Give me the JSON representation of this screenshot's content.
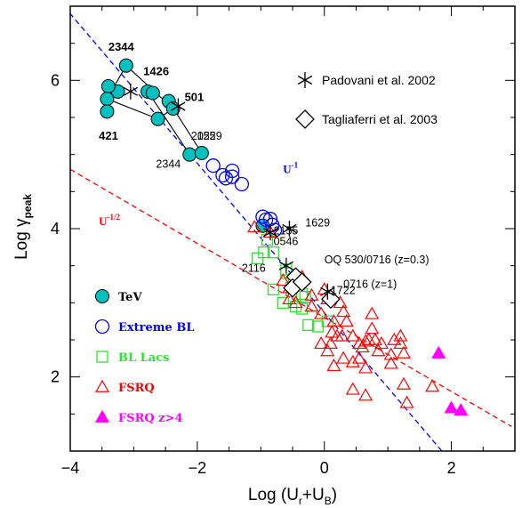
{
  "chart_data": {
    "type": "scatter",
    "xlabel_main": "Log (U",
    "xlabel_sub1": "r",
    "xlabel_mid": "+U",
    "xlabel_sub2": "B",
    "xlabel_end": ")",
    "ylabel_main": "Log γ",
    "ylabel_sub": "peak",
    "xlim": [
      -4,
      3
    ],
    "ylim": [
      1,
      7
    ],
    "xticks": [
      -4,
      -2,
      0,
      2
    ],
    "yticks": [
      2,
      4,
      6
    ],
    "lines": [
      {
        "label": "U",
        "exp": "-1",
        "color": "#0000ff",
        "x": [
          -4.1,
          1.85
        ],
        "y": [
          7.0,
          1.0
        ]
      },
      {
        "label": "U",
        "exp": "-1/2",
        "color": "#ff0000",
        "x": [
          -4.0,
          2.95
        ],
        "y": [
          4.8,
          1.33
        ]
      }
    ],
    "line_labels": [
      {
        "base": "U",
        "exp": "-1",
        "color": "#0000ff",
        "x": -0.65,
        "y": 4.75
      },
      {
        "base": "U",
        "exp": "-1/2",
        "color": "#ff0000",
        "x": -3.55,
        "y": 4.05
      }
    ],
    "series": [
      {
        "name": "TeV",
        "marker": "circle-filled",
        "color": "#00c0c0",
        "points": [
          [
            -3.12,
            6.2
          ],
          [
            -3.25,
            5.85
          ],
          [
            -3.4,
            5.92
          ],
          [
            -3.42,
            5.75
          ],
          [
            -3.42,
            5.58
          ],
          [
            -2.78,
            5.85
          ],
          [
            -2.7,
            5.83
          ],
          [
            -2.45,
            5.72
          ],
          [
            -2.38,
            5.62
          ],
          [
            -2.62,
            5.48
          ],
          [
            -2.12,
            5.0
          ],
          [
            -1.93,
            5.02
          ],
          [
            -0.97,
            4.04
          ]
        ]
      },
      {
        "name": "Extreme BL",
        "marker": "circle-open",
        "color": "#0000ff",
        "points": [
          [
            -1.75,
            4.85
          ],
          [
            -1.6,
            4.72
          ],
          [
            -1.55,
            4.68
          ],
          [
            -1.45,
            4.78
          ],
          [
            -1.45,
            4.7
          ],
          [
            -1.3,
            4.6
          ],
          [
            -0.97,
            4.16
          ],
          [
            -0.92,
            4.12
          ],
          [
            -0.85,
            4.13
          ],
          [
            -0.82,
            4.05
          ],
          [
            -0.78,
            3.98
          ]
        ]
      },
      {
        "name": "BL Lacs",
        "marker": "square-open",
        "color": "#33dd33",
        "points": [
          [
            -0.9,
            3.85
          ],
          [
            -0.95,
            3.68
          ],
          [
            -0.8,
            3.68
          ],
          [
            -1.05,
            3.6
          ],
          [
            -0.6,
            3.4
          ],
          [
            -0.48,
            3.32
          ],
          [
            -0.4,
            3.25
          ],
          [
            -0.52,
            3.2
          ],
          [
            -0.35,
            3.12
          ],
          [
            -0.3,
            3.08
          ],
          [
            -0.8,
            3.18
          ],
          [
            -0.65,
            3.0
          ],
          [
            -0.45,
            2.95
          ],
          [
            -0.35,
            2.92
          ],
          [
            -0.25,
            2.7
          ],
          [
            -0.1,
            2.68
          ],
          [
            0.05,
            2.75
          ],
          [
            -0.6,
            3.45
          ]
        ]
      },
      {
        "name": "FSRQ",
        "marker": "triangle-open",
        "color": "#ff0000",
        "points": [
          [
            -1.1,
            4.02
          ],
          [
            -0.85,
            3.95
          ],
          [
            -0.65,
            3.3
          ],
          [
            -0.55,
            3.2
          ],
          [
            -0.55,
            3.05
          ],
          [
            -0.45,
            3.0
          ],
          [
            -0.35,
            3.35
          ],
          [
            -0.2,
            3.1
          ],
          [
            -0.2,
            2.95
          ],
          [
            -0.05,
            2.85
          ],
          [
            0.0,
            3.18
          ],
          [
            0.05,
            3.05
          ],
          [
            0.15,
            2.75
          ],
          [
            0.25,
            3.0
          ],
          [
            0.3,
            2.88
          ],
          [
            0.2,
            2.55
          ],
          [
            0.1,
            2.45
          ],
          [
            0.28,
            2.55
          ],
          [
            0.35,
            2.75
          ],
          [
            0.45,
            2.55
          ],
          [
            0.55,
            2.45
          ],
          [
            0.65,
            2.48
          ],
          [
            0.75,
            2.85
          ],
          [
            0.75,
            2.65
          ],
          [
            0.8,
            2.5
          ],
          [
            0.9,
            2.45
          ],
          [
            0.45,
            2.2
          ],
          [
            0.55,
            2.25
          ],
          [
            0.6,
            2.4
          ],
          [
            0.65,
            2.12
          ],
          [
            0.7,
            2.5
          ],
          [
            0.85,
            2.35
          ],
          [
            1.05,
            2.18
          ],
          [
            1.2,
            2.55
          ],
          [
            1.2,
            2.45
          ],
          [
            1.25,
            2.32
          ],
          [
            1.1,
            2.5
          ],
          [
            1.05,
            2.3
          ],
          [
            1.25,
            1.9
          ],
          [
            1.3,
            1.65
          ],
          [
            1.7,
            1.87
          ],
          [
            0.65,
            1.75
          ],
          [
            0.45,
            1.83
          ],
          [
            0.3,
            2.25
          ],
          [
            0.15,
            2.15
          ],
          [
            0.05,
            2.35
          ],
          [
            -0.05,
            2.45
          ],
          [
            0.12,
            2.6
          ]
        ]
      },
      {
        "name": "FSRQ z>4",
        "marker": "triangle-filled",
        "color": "#ff00ff",
        "points": [
          [
            1.8,
            2.32
          ],
          [
            2.0,
            1.58
          ],
          [
            2.15,
            1.55
          ]
        ]
      }
    ],
    "padovani": {
      "name": "Padovani et al. 2002",
      "marker": "asterisk",
      "points": [
        [
          -3.05,
          5.85
        ],
        [
          -2.3,
          5.65
        ],
        [
          -0.55,
          4.0
        ],
        [
          -0.85,
          3.95
        ],
        [
          -0.6,
          3.5
        ],
        [
          0.05,
          3.15
        ]
      ]
    },
    "tagliaferri": {
      "name": "Tagliaferri et al. 2003",
      "marker": "diamond-open",
      "points": [
        [
          -0.45,
          3.35
        ],
        [
          -0.5,
          3.2
        ],
        [
          -0.35,
          3.28
        ],
        [
          0.1,
          3.05
        ]
      ]
    },
    "tev_lines": [
      [
        [
          -3.12,
          6.2
        ],
        [
          -3.42,
          5.75
        ],
        [
          -2.62,
          5.48
        ],
        [
          -2.38,
          5.62
        ],
        [
          -3.12,
          6.2
        ]
      ],
      [
        [
          -2.78,
          5.85
        ],
        [
          -2.12,
          5.0
        ]
      ],
      [
        [
          -2.45,
          5.72
        ],
        [
          -1.93,
          5.02
        ]
      ]
    ],
    "source_labels": [
      {
        "text": "2344",
        "x": -3.4,
        "y": 6.4,
        "bold": true
      },
      {
        "text": "1426",
        "x": -2.85,
        "y": 6.07,
        "bold": true
      },
      {
        "text": "501",
        "x": -2.2,
        "y": 5.72,
        "bold": true
      },
      {
        "text": "421",
        "x": -3.55,
        "y": 5.2,
        "bold": true
      },
      {
        "text": "2344",
        "x": -2.65,
        "y": 4.82,
        "bold": false
      },
      {
        "text": "2155",
        "x": -2.1,
        "y": 5.2,
        "bold": false
      },
      {
        "text": "0229",
        "x": -2.0,
        "y": 5.2,
        "bold": false
      },
      {
        "text": "1629",
        "x": -0.3,
        "y": 4.03,
        "bold": false
      },
      {
        "text": "2155",
        "x": -0.8,
        "y": 3.92,
        "bold": false
      },
      {
        "text": "0546",
        "x": -0.8,
        "y": 3.78,
        "bold": false
      },
      {
        "text": "2116",
        "x": -1.3,
        "y": 3.42,
        "bold": false
      },
      {
        "text": "OQ 530/0716 (z=0.3)",
        "x": 0.0,
        "y": 3.53,
        "bold": false
      },
      {
        "text": "0716 (z=1)",
        "x": 0.3,
        "y": 3.2,
        "bold": false
      },
      {
        "text": "1722",
        "x": 0.1,
        "y": 3.12,
        "bold": false
      }
    ]
  },
  "legend": [
    {
      "label": "TeV",
      "color": "#000000",
      "marker": "circle-filled",
      "marker_color": "#00c0c0"
    },
    {
      "label": "Extreme BL",
      "color": "#0000ff",
      "marker": "circle-open",
      "marker_color": "#0000ff"
    },
    {
      "label": "BL Lacs",
      "color": "#33dd33",
      "marker": "square-open",
      "marker_color": "#33dd33"
    },
    {
      "label": "FSRQ",
      "color": "#ff0000",
      "marker": "triangle-open",
      "marker_color": "#ff0000"
    },
    {
      "label": "FSRQ z>4",
      "color": "#ff00ff",
      "marker": "triangle-filled",
      "marker_color": "#ff00ff"
    }
  ],
  "ref_legend": [
    {
      "label": "Padovani et al. 2002",
      "marker": "asterisk"
    },
    {
      "label": "Tagliaferri et al. 2003",
      "marker": "diamond-open"
    }
  ]
}
